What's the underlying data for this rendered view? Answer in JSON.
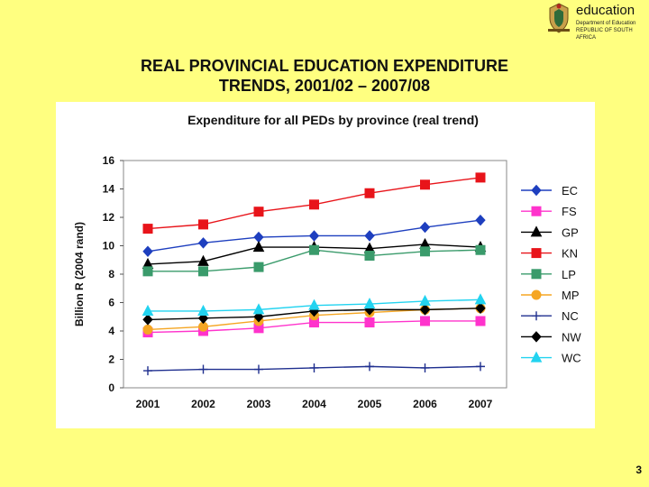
{
  "logo": {
    "word": "education",
    "line1": "Department of Education",
    "line2": "REPUBLIC OF SOUTH AFRICA"
  },
  "slide": {
    "title_line1": "REAL PROVINCIAL EDUCATION EXPENDITURE",
    "title_line2": "TRENDS, 2001/02 – 2007/08",
    "page_number": "3"
  },
  "chart_data": {
    "type": "line",
    "title": "Expenditure for all PEDs by province (real trend)",
    "xlabel": "",
    "ylabel": "Billion R (2004 rand)",
    "categories": [
      "2001",
      "2002",
      "2003",
      "2004",
      "2005",
      "2006",
      "2007"
    ],
    "ylim": [
      0,
      16
    ],
    "yticks": [
      0,
      2,
      4,
      6,
      8,
      10,
      12,
      14,
      16
    ],
    "grid": false,
    "legend_position": "right",
    "series": [
      {
        "name": "EC",
        "color": "#1E3FBF",
        "marker": "diamond",
        "values": [
          9.6,
          10.2,
          10.6,
          10.7,
          10.7,
          11.3,
          11.8
        ]
      },
      {
        "name": "FS",
        "color": "#FF33CC",
        "marker": "square",
        "values": [
          3.9,
          4.0,
          4.2,
          4.6,
          4.6,
          4.7,
          4.7
        ]
      },
      {
        "name": "GP",
        "color": "#000000",
        "marker": "triangle",
        "values": [
          8.7,
          8.9,
          9.9,
          9.9,
          9.8,
          10.1,
          9.9
        ]
      },
      {
        "name": "KN",
        "color": "#E8141A",
        "marker": "square",
        "values": [
          11.2,
          11.5,
          12.4,
          12.9,
          13.7,
          14.3,
          14.8
        ]
      },
      {
        "name": "LP",
        "color": "#3A9B6B",
        "marker": "square",
        "values": [
          8.2,
          8.2,
          8.5,
          9.7,
          9.3,
          9.6,
          9.7
        ]
      },
      {
        "name": "MP",
        "color": "#F5A623",
        "marker": "circle",
        "values": [
          4.1,
          4.3,
          4.7,
          5.1,
          5.3,
          5.5,
          5.6
        ]
      },
      {
        "name": "NC",
        "color": "#1F2F8F",
        "marker": "plus",
        "values": [
          1.2,
          1.3,
          1.3,
          1.4,
          1.5,
          1.4,
          1.5
        ]
      },
      {
        "name": "NW",
        "color": "#000000",
        "marker": "diamond",
        "values": [
          4.8,
          4.9,
          5.0,
          5.4,
          5.5,
          5.5,
          5.6
        ]
      },
      {
        "name": "WC",
        "color": "#22D3F0",
        "marker": "triangle",
        "values": [
          5.4,
          5.4,
          5.5,
          5.8,
          5.9,
          6.1,
          6.2
        ]
      }
    ]
  }
}
